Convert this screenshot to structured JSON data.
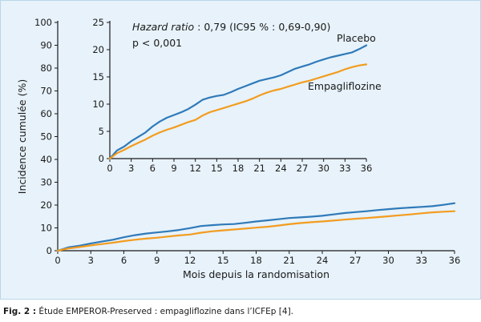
{
  "chart_data": [
    {
      "type": "line",
      "name": "main",
      "xlabel": "Mois depuis la randomisation",
      "ylabel": "Incidence cumulée (%)",
      "xlim": [
        0,
        36
      ],
      "ylim": [
        0,
        100
      ],
      "xticks": [
        0,
        3,
        6,
        9,
        12,
        15,
        18,
        21,
        24,
        27,
        30,
        33,
        36
      ],
      "yticks": [
        0,
        10,
        20,
        30,
        40,
        50,
        60,
        70,
        80,
        90,
        100
      ],
      "series": [
        {
          "color": "#2f7ab9",
          "x": [
            0,
            1,
            2,
            3,
            4,
            5,
            6,
            7,
            8,
            9,
            10,
            11,
            12,
            13,
            14,
            15,
            16,
            17,
            18,
            19,
            20,
            21,
            22,
            23,
            24,
            25,
            26,
            27,
            28,
            29,
            30,
            31,
            32,
            33,
            34,
            35,
            36
          ],
          "y": [
            0,
            1.5,
            2.2,
            3.2,
            4,
            4.8,
            5.9,
            6.8,
            7.5,
            8,
            8.5,
            9.1,
            9.9,
            10.8,
            11.2,
            11.5,
            11.7,
            12.2,
            12.8,
            13.3,
            13.8,
            14.3,
            14.6,
            14.9,
            15.3,
            15.9,
            16.5,
            16.9,
            17.3,
            17.8,
            18.2,
            18.6,
            18.9,
            19.2,
            19.5,
            20.1,
            20.8
          ]
        },
        {
          "color": "#f39c1f",
          "x": [
            0,
            1,
            2,
            3,
            4,
            5,
            6,
            7,
            8,
            9,
            10,
            11,
            12,
            13,
            14,
            15,
            16,
            17,
            18,
            19,
            20,
            21,
            22,
            23,
            24,
            25,
            26,
            27,
            28,
            29,
            30,
            31,
            32,
            33,
            34,
            35,
            36
          ],
          "y": [
            0,
            1,
            1.6,
            2.3,
            2.9,
            3.5,
            4.2,
            4.8,
            5.3,
            5.7,
            6.2,
            6.7,
            7.1,
            7.9,
            8.5,
            8.9,
            9.3,
            9.7,
            10.1,
            10.5,
            11,
            11.6,
            12.1,
            12.5,
            12.8,
            13.2,
            13.6,
            14,
            14.3,
            14.7,
            15.1,
            15.5,
            15.9,
            16.4,
            16.8,
            17.1,
            17.3
          ]
        }
      ]
    },
    {
      "type": "line",
      "name": "inset",
      "xlim": [
        0,
        36
      ],
      "ylim": [
        0,
        25
      ],
      "xticks": [
        0,
        3,
        6,
        9,
        12,
        15,
        18,
        21,
        24,
        27,
        30,
        33,
        36
      ],
      "yticks": [
        0,
        5,
        10,
        15,
        20,
        25
      ],
      "annotations": {
        "hr_label": "Hazard ratio",
        "hr_value": " : 0,79 (IC95 % : 0,69-0,90)",
        "pvalue": "p < 0,001"
      },
      "series": [
        {
          "name": "Placebo",
          "color": "#2f7ab9",
          "x": [
            0,
            1,
            2,
            3,
            4,
            5,
            6,
            7,
            8,
            9,
            10,
            11,
            12,
            13,
            14,
            15,
            16,
            17,
            18,
            19,
            20,
            21,
            22,
            23,
            24,
            25,
            26,
            27,
            28,
            29,
            30,
            31,
            32,
            33,
            34,
            35,
            36
          ],
          "y": [
            0,
            1.5,
            2.2,
            3.2,
            4,
            4.8,
            5.9,
            6.8,
            7.5,
            8,
            8.5,
            9.1,
            9.9,
            10.8,
            11.2,
            11.5,
            11.7,
            12.2,
            12.8,
            13.3,
            13.8,
            14.3,
            14.6,
            14.9,
            15.3,
            15.9,
            16.5,
            16.9,
            17.3,
            17.8,
            18.2,
            18.6,
            18.9,
            19.2,
            19.5,
            20.1,
            20.8
          ]
        },
        {
          "name": "Empagliflozine",
          "color": "#f39c1f",
          "x": [
            0,
            1,
            2,
            3,
            4,
            5,
            6,
            7,
            8,
            9,
            10,
            11,
            12,
            13,
            14,
            15,
            16,
            17,
            18,
            19,
            20,
            21,
            22,
            23,
            24,
            25,
            26,
            27,
            28,
            29,
            30,
            31,
            32,
            33,
            34,
            35,
            36
          ],
          "y": [
            0,
            1,
            1.6,
            2.3,
            2.9,
            3.5,
            4.2,
            4.8,
            5.3,
            5.7,
            6.2,
            6.7,
            7.1,
            7.9,
            8.5,
            8.9,
            9.3,
            9.7,
            10.1,
            10.5,
            11,
            11.6,
            12.1,
            12.5,
            12.8,
            13.2,
            13.6,
            14,
            14.3,
            14.7,
            15.1,
            15.5,
            15.9,
            16.4,
            16.8,
            17.1,
            17.3
          ]
        }
      ]
    }
  ],
  "caption": {
    "label": "Fig. 2 :",
    "text": " Étude EMPEROR-Preserved : empagliflozine dans l’ICFEp [4]."
  }
}
